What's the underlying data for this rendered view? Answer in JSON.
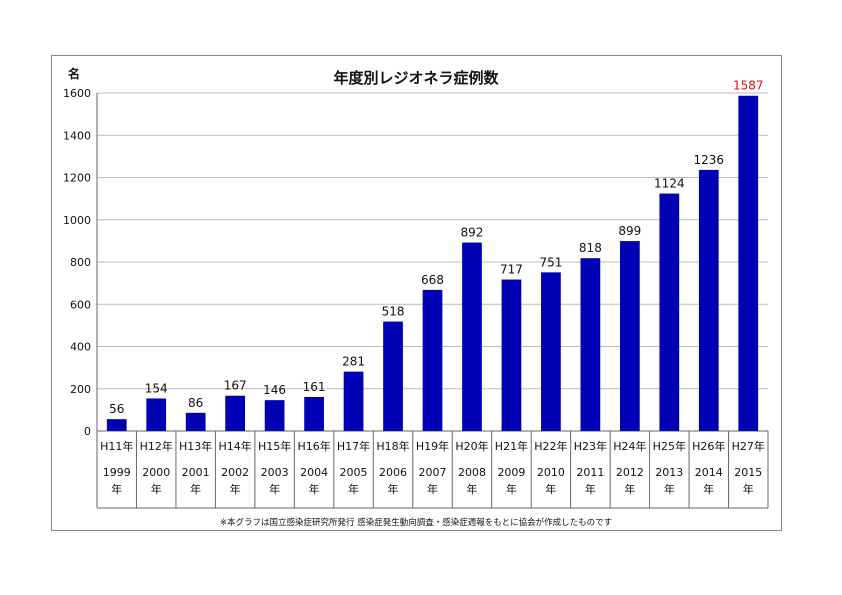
{
  "chart_data": {
    "type": "bar",
    "title": "年度別レジオネラ症例数",
    "unit_label": "名",
    "ylabel": "名",
    "xlabel": "",
    "ylim": [
      0,
      1600
    ],
    "yticks": [
      0,
      200,
      400,
      600,
      800,
      1000,
      1200,
      1400,
      1600
    ],
    "grid": true,
    "bar_color": "#0000b4",
    "highlight_color": "#e01010",
    "categories": [
      "H11年",
      "H12年",
      "H13年",
      "H14年",
      "H15年",
      "H16年",
      "H17年",
      "H18年",
      "H19年",
      "H20年",
      "H21年",
      "H22年",
      "H23年",
      "H24年",
      "H25年",
      "H26年",
      "H27年"
    ],
    "years": [
      "1999",
      "2000",
      "2001",
      "2002",
      "2003",
      "2004",
      "2005",
      "2006",
      "2007",
      "2008",
      "2009",
      "2010",
      "2011",
      "2012",
      "2013",
      "2014",
      "2015"
    ],
    "year_suffix": "年",
    "values": [
      56,
      154,
      86,
      167,
      146,
      161,
      281,
      518,
      668,
      892,
      717,
      751,
      818,
      899,
      1124,
      1236,
      1587
    ],
    "highlight_index": 16
  },
  "footnote": "※本グラフは国立感染症研究所発行 感染症発生動向調査・感染症週報をもとに協会が作成したものです"
}
